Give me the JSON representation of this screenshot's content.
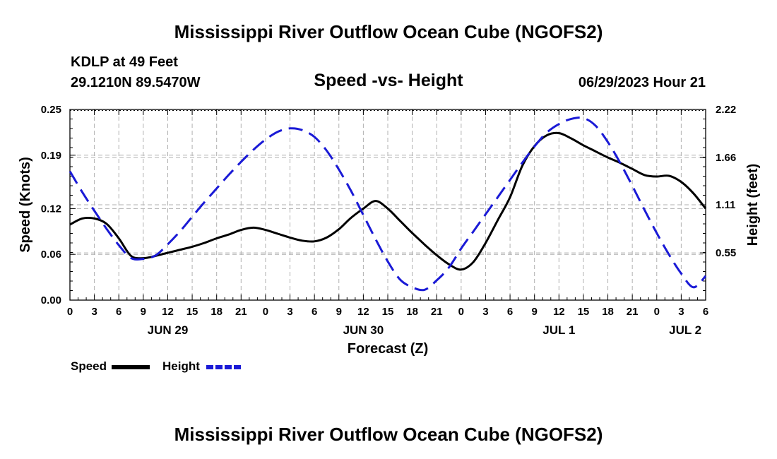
{
  "title": "Mississippi River Outflow Ocean Cube (NGOFS2)",
  "footer_title": "Mississippi River Outflow Ocean Cube (NGOFS2)",
  "station": {
    "name": "KDLP at 49 Feet",
    "coords": "29.1210N  89.5470W"
  },
  "run_time": "06/29/2023 Hour 21",
  "legend": {
    "speed_label": "Speed",
    "height_label": "Height"
  },
  "colors": {
    "speed": "#000000",
    "height": "#1a1ad6",
    "grid": "#b0b0b0"
  },
  "chart_data": {
    "type": "line",
    "title": "Speed -vs- Height",
    "xlabel": "Forecast (Z)",
    "ylabel_left": "Speed (Knots)",
    "ylabel_right": "Height (feet)",
    "x_unit": "hours since 06/29 00Z",
    "xlim": [
      0,
      78
    ],
    "ylim_left": [
      0,
      0.25
    ],
    "ylim_right": [
      0.0,
      2.22
    ],
    "left_ticks": [
      0.0,
      0.06,
      0.12,
      0.19,
      0.25
    ],
    "left_tick_labels": [
      "0.00",
      "0.06",
      "0.12",
      "0.19",
      "0.25"
    ],
    "right_ticks": [
      0.55,
      1.11,
      1.66,
      2.22
    ],
    "right_tick_labels": [
      "0.55",
      "1.11",
      "1.66",
      "2.22"
    ],
    "x_ticks": [
      0,
      3,
      6,
      9,
      12,
      15,
      18,
      21,
      24,
      27,
      30,
      33,
      36,
      39,
      42,
      45,
      48,
      51,
      54,
      57,
      60,
      63,
      66,
      69,
      72,
      75,
      78
    ],
    "x_tick_labels": [
      "0",
      "3",
      "6",
      "9",
      "12",
      "15",
      "18",
      "21",
      "0",
      "3",
      "6",
      "9",
      "12",
      "15",
      "18",
      "21",
      "0",
      "3",
      "6",
      "9",
      "12",
      "15",
      "18",
      "21",
      "0",
      "3",
      "6"
    ],
    "day_labels": [
      {
        "x": 12,
        "label": "JUN 29"
      },
      {
        "x": 36,
        "label": "JUN 30"
      },
      {
        "x": 60,
        "label": "JUL 1"
      },
      {
        "x": 75.5,
        "label": "JUL 2"
      }
    ],
    "series": [
      {
        "name": "Speed",
        "axis": "left",
        "style": "solid",
        "x": [
          0,
          1.5,
          3,
          4.5,
          6,
          7.5,
          9,
          10.5,
          12,
          13.5,
          15,
          16.5,
          18,
          19.5,
          21,
          22.5,
          24,
          25.5,
          27,
          28.5,
          30,
          31.5,
          33,
          34.5,
          36,
          37.5,
          39,
          40.5,
          42,
          43.5,
          45,
          46.5,
          48,
          49.5,
          51,
          52.5,
          54,
          55.5,
          57,
          58.5,
          60,
          61.5,
          63,
          64.5,
          66,
          67.5,
          69,
          70.5,
          72,
          73.5,
          75,
          76.5,
          78
        ],
        "values": [
          0.099,
          0.107,
          0.107,
          0.1,
          0.081,
          0.058,
          0.055,
          0.058,
          0.062,
          0.066,
          0.07,
          0.075,
          0.081,
          0.086,
          0.092,
          0.095,
          0.092,
          0.087,
          0.082,
          0.078,
          0.077,
          0.082,
          0.093,
          0.108,
          0.12,
          0.13,
          0.12,
          0.104,
          0.088,
          0.073,
          0.059,
          0.047,
          0.04,
          0.05,
          0.075,
          0.105,
          0.135,
          0.176,
          0.202,
          0.216,
          0.219,
          0.212,
          0.203,
          0.195,
          0.187,
          0.18,
          0.172,
          0.164,
          0.162,
          0.163,
          0.155,
          0.14,
          0.12
        ]
      },
      {
        "name": "Height",
        "axis": "right",
        "style": "dashed",
        "x": [
          0,
          1.5,
          3,
          4.5,
          6,
          7.5,
          9,
          10.5,
          12,
          13.5,
          15,
          16.5,
          18,
          19.5,
          21,
          22.5,
          24,
          25.5,
          27,
          28.5,
          30,
          31.5,
          33,
          34.5,
          36,
          37.5,
          39,
          40.5,
          42,
          43.5,
          45,
          46.5,
          48,
          49.5,
          51,
          52.5,
          54,
          55.5,
          57,
          58.5,
          60,
          61.5,
          63,
          64.5,
          66,
          67.5,
          69,
          70.5,
          72,
          73.5,
          75,
          76.5,
          78
        ],
        "values": [
          1.5,
          1.26,
          1.04,
          0.83,
          0.64,
          0.49,
          0.48,
          0.52,
          0.65,
          0.8,
          0.97,
          1.14,
          1.3,
          1.46,
          1.61,
          1.75,
          1.87,
          1.96,
          2.0,
          1.98,
          1.9,
          1.74,
          1.52,
          1.27,
          0.99,
          0.71,
          0.45,
          0.24,
          0.15,
          0.12,
          0.23,
          0.38,
          0.6,
          0.8,
          1.0,
          1.2,
          1.4,
          1.6,
          1.79,
          1.95,
          2.05,
          2.11,
          2.12,
          2.03,
          1.84,
          1.6,
          1.33,
          1.05,
          0.78,
          0.53,
          0.31,
          0.15,
          0.28
        ]
      }
    ]
  }
}
